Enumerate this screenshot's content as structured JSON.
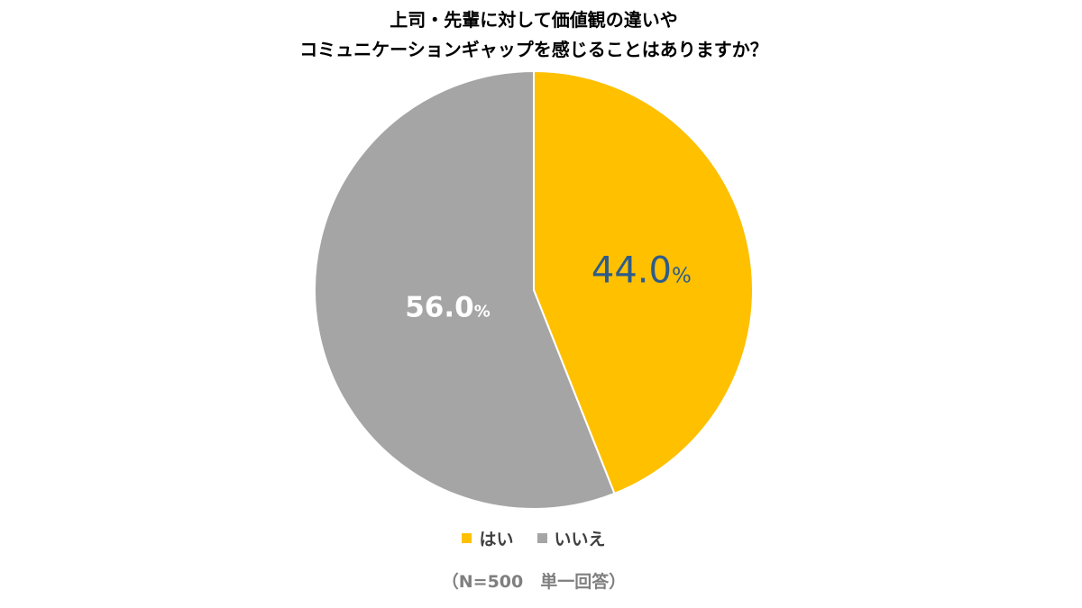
{
  "chart_data": {
    "type": "pie",
    "title_lines": [
      "上司・先輩に対して価値観の違いや",
      "コミュニケーションギャップを感じることはありますか？"
    ],
    "categories": [
      "はい",
      "いいえ"
    ],
    "values": [
      44.0,
      56.0
    ],
    "unit": "%",
    "colors": [
      "#FFC000",
      "#A5A5A5"
    ],
    "label_colors": [
      "#2E5C8A",
      "#FFFFFF"
    ],
    "start": "top, clockwise",
    "legend_position": "bottom",
    "note": "（N=500　単一回答）"
  }
}
